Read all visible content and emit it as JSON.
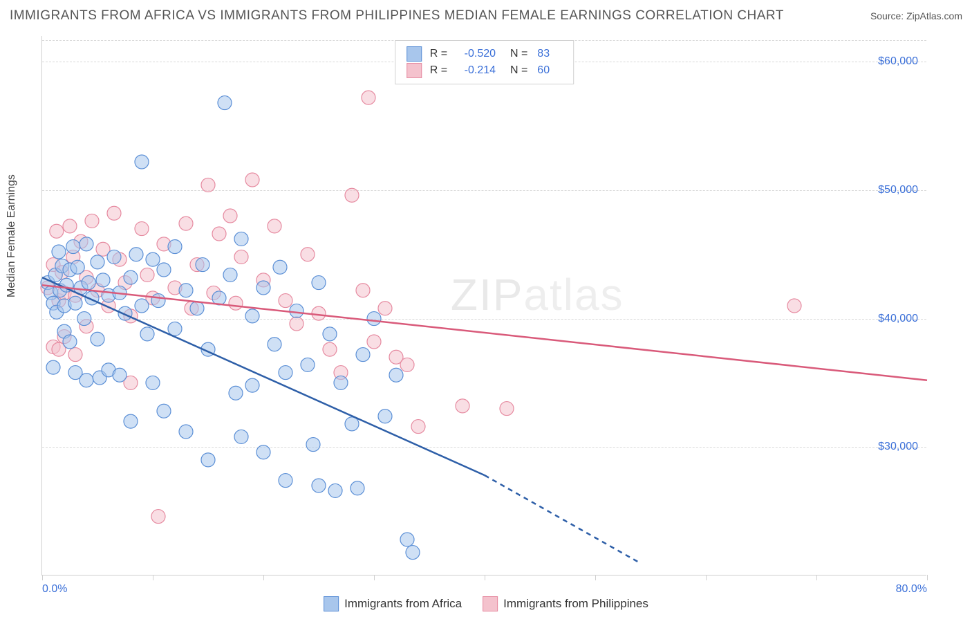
{
  "title": "IMMIGRANTS FROM AFRICA VS IMMIGRANTS FROM PHILIPPINES MEDIAN FEMALE EARNINGS CORRELATION CHART",
  "source_label": "Source: ",
  "source_name": "ZipAtlas.com",
  "watermark_a": "ZIP",
  "watermark_b": "atlas",
  "ylabel": "Median Female Earnings",
  "chart": {
    "type": "scatter",
    "xlim": [
      0,
      80
    ],
    "ylim": [
      20000,
      62000
    ],
    "x_ticks": [
      0,
      10,
      20,
      30,
      40,
      50,
      60,
      70,
      80
    ],
    "x_tick_labels_shown": {
      "0": "0.0%",
      "80": "80.0%"
    },
    "y_gridlines": [
      30000,
      40000,
      50000,
      60000
    ],
    "y_tick_labels": {
      "30000": "$30,000",
      "40000": "$40,000",
      "50000": "$50,000",
      "60000": "$60,000"
    },
    "grid_color": "#d8d8d8",
    "axis_color": "#cfcfcf",
    "background_color": "#ffffff",
    "tick_label_color": "#3a6fd8",
    "ylabel_color": "#444444",
    "marker_radius": 10,
    "marker_opacity": 0.55,
    "line_width": 2.5
  },
  "series": [
    {
      "name": "Immigrants from Africa",
      "fill": "#a8c6ec",
      "stroke": "#5b8fd6",
      "line_color": "#2e5fa8",
      "R": "-0.520",
      "N": "83",
      "regression": {
        "x1": 0,
        "y1": 43200,
        "x2": 40,
        "y2": 27800,
        "dash_x2": 54,
        "dash_y2": 21000
      },
      "points": [
        [
          0.5,
          42800
        ],
        [
          0.8,
          42000
        ],
        [
          1.0,
          41200
        ],
        [
          1.0,
          36200
        ],
        [
          1.2,
          43400
        ],
        [
          1.3,
          40500
        ],
        [
          1.5,
          45200
        ],
        [
          1.6,
          42200
        ],
        [
          1.8,
          44100
        ],
        [
          2.0,
          41000
        ],
        [
          2.0,
          39000
        ],
        [
          2.2,
          42600
        ],
        [
          2.5,
          43800
        ],
        [
          2.5,
          38200
        ],
        [
          2.8,
          45600
        ],
        [
          3.0,
          41200
        ],
        [
          3.0,
          35800
        ],
        [
          3.2,
          44000
        ],
        [
          3.5,
          42400
        ],
        [
          3.8,
          40000
        ],
        [
          4.0,
          45800
        ],
        [
          4.0,
          35200
        ],
        [
          4.2,
          42800
        ],
        [
          4.5,
          41600
        ],
        [
          5.0,
          44400
        ],
        [
          5.0,
          38400
        ],
        [
          5.2,
          35400
        ],
        [
          5.5,
          43000
        ],
        [
          6.0,
          41800
        ],
        [
          6.0,
          36000
        ],
        [
          6.5,
          44800
        ],
        [
          7.0,
          42000
        ],
        [
          7.0,
          35600
        ],
        [
          7.5,
          40400
        ],
        [
          8.0,
          43200
        ],
        [
          8.0,
          32000
        ],
        [
          8.5,
          45000
        ],
        [
          9.0,
          52200
        ],
        [
          9.0,
          41000
        ],
        [
          9.5,
          38800
        ],
        [
          10.0,
          44600
        ],
        [
          10.0,
          35000
        ],
        [
          10.5,
          41400
        ],
        [
          11.0,
          43800
        ],
        [
          11.0,
          32800
        ],
        [
          12.0,
          45600
        ],
        [
          12.0,
          39200
        ],
        [
          13.0,
          42200
        ],
        [
          13.0,
          31200
        ],
        [
          14.0,
          40800
        ],
        [
          14.5,
          44200
        ],
        [
          15.0,
          37600
        ],
        [
          15.0,
          29000
        ],
        [
          16.0,
          41600
        ],
        [
          16.5,
          56800
        ],
        [
          17.0,
          43400
        ],
        [
          17.5,
          34200
        ],
        [
          18.0,
          46200
        ],
        [
          18.0,
          30800
        ],
        [
          19.0,
          40200
        ],
        [
          19.0,
          34800
        ],
        [
          20.0,
          42400
        ],
        [
          20.0,
          29600
        ],
        [
          21.0,
          38000
        ],
        [
          21.5,
          44000
        ],
        [
          22.0,
          35800
        ],
        [
          22.0,
          27400
        ],
        [
          23.0,
          40600
        ],
        [
          24.0,
          36400
        ],
        [
          24.5,
          30200
        ],
        [
          25.0,
          42800
        ],
        [
          25.0,
          27000
        ],
        [
          26.0,
          38800
        ],
        [
          26.5,
          26600
        ],
        [
          27.0,
          35000
        ],
        [
          28.0,
          31800
        ],
        [
          28.5,
          26800
        ],
        [
          29.0,
          37200
        ],
        [
          30.0,
          40000
        ],
        [
          31.0,
          32400
        ],
        [
          32.0,
          35600
        ],
        [
          33.0,
          22800
        ],
        [
          33.5,
          21800
        ]
      ]
    },
    {
      "name": "Immigrants from Philippines",
      "fill": "#f4c2cd",
      "stroke": "#e68aa0",
      "line_color": "#d95a7a",
      "R": "-0.214",
      "N": "60",
      "regression": {
        "x1": 0,
        "y1": 42600,
        "x2": 80,
        "y2": 35200
      },
      "points": [
        [
          0.5,
          42400
        ],
        [
          1.0,
          44200
        ],
        [
          1.0,
          37800
        ],
        [
          1.3,
          46800
        ],
        [
          1.5,
          41400
        ],
        [
          1.8,
          43600
        ],
        [
          2.0,
          42000
        ],
        [
          2.0,
          38600
        ],
        [
          2.5,
          47200
        ],
        [
          2.8,
          44800
        ],
        [
          3.0,
          41800
        ],
        [
          3.0,
          37200
        ],
        [
          3.5,
          46000
        ],
        [
          4.0,
          43200
        ],
        [
          4.0,
          39400
        ],
        [
          4.5,
          47600
        ],
        [
          5.0,
          42200
        ],
        [
          5.5,
          45400
        ],
        [
          6.0,
          41000
        ],
        [
          6.5,
          48200
        ],
        [
          7.0,
          44600
        ],
        [
          7.5,
          42800
        ],
        [
          8.0,
          40200
        ],
        [
          8.0,
          35000
        ],
        [
          9.0,
          47000
        ],
        [
          9.5,
          43400
        ],
        [
          10.0,
          41600
        ],
        [
          10.5,
          24600
        ],
        [
          11.0,
          45800
        ],
        [
          12.0,
          42400
        ],
        [
          13.0,
          47400
        ],
        [
          13.5,
          40800
        ],
        [
          14.0,
          44200
        ],
        [
          15.0,
          50400
        ],
        [
          15.5,
          42000
        ],
        [
          16.0,
          46600
        ],
        [
          17.0,
          48000
        ],
        [
          17.5,
          41200
        ],
        [
          18.0,
          44800
        ],
        [
          19.0,
          50800
        ],
        [
          20.0,
          43000
        ],
        [
          21.0,
          47200
        ],
        [
          22.0,
          41400
        ],
        [
          23.0,
          39600
        ],
        [
          24.0,
          45000
        ],
        [
          25.0,
          40400
        ],
        [
          26.0,
          37600
        ],
        [
          27.0,
          35800
        ],
        [
          28.0,
          49600
        ],
        [
          29.0,
          42200
        ],
        [
          29.5,
          57200
        ],
        [
          30.0,
          38200
        ],
        [
          31.0,
          40800
        ],
        [
          32.0,
          37000
        ],
        [
          33.0,
          36400
        ],
        [
          34.0,
          31600
        ],
        [
          38.0,
          33200
        ],
        [
          42.0,
          33000
        ],
        [
          68.0,
          41000
        ],
        [
          1.5,
          37600
        ]
      ]
    }
  ],
  "legend_bottom": [
    {
      "swatch_fill": "#a8c6ec",
      "swatch_stroke": "#5b8fd6",
      "label": "Immigrants from Africa"
    },
    {
      "swatch_fill": "#f4c2cd",
      "swatch_stroke": "#e68aa0",
      "label": "Immigrants from Philippines"
    }
  ]
}
